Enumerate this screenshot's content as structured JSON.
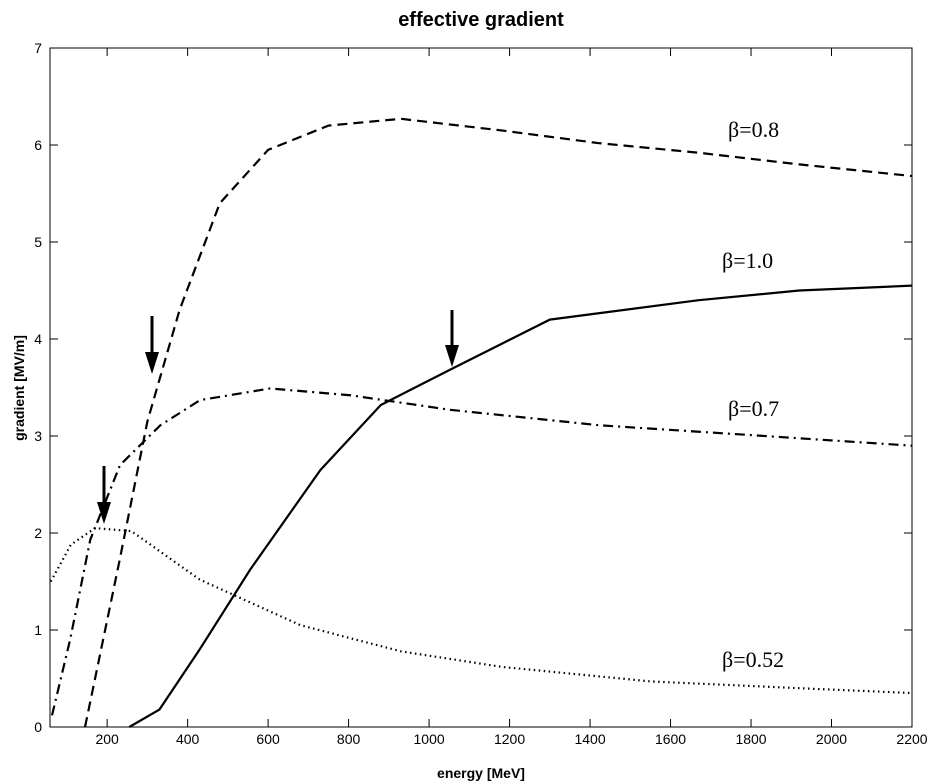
{
  "chart_data": {
    "type": "line",
    "title": "effective gradient",
    "x_label": "energy [MeV]",
    "y_label": "gradient [MV/m]",
    "xlim": [
      58,
      2200
    ],
    "ylim": [
      0,
      7
    ],
    "xticks": [
      200,
      400,
      600,
      800,
      1000,
      1200,
      1400,
      1600,
      1800,
      2000,
      2200
    ],
    "yticks": [
      0,
      1,
      2,
      3,
      4,
      5,
      6,
      7
    ],
    "grid": false,
    "series": [
      {
        "name": "β=0.8",
        "color": "#000000",
        "style": "dashed",
        "x": [
          145,
          180,
          230,
          300,
          380,
          480,
          600,
          750,
          930,
          1180,
          1420,
          1670,
          1920,
          2200
        ],
        "values": [
          0,
          0.7,
          1.7,
          3.15,
          4.3,
          5.4,
          5.95,
          6.2,
          6.27,
          6.15,
          6.02,
          5.92,
          5.8,
          5.68
        ]
      },
      {
        "name": "β=1.0",
        "color": "#000000",
        "style": "solid",
        "x": [
          255,
          330,
          430,
          555,
          730,
          880,
          1060,
          1300,
          1670,
          1920,
          2200
        ],
        "values": [
          0,
          0.18,
          0.8,
          1.62,
          2.65,
          3.32,
          3.7,
          4.2,
          4.4,
          4.5,
          4.55
        ]
      },
      {
        "name": "β=0.7",
        "color": "#000000",
        "style": "dashdot",
        "x": [
          63,
          108,
          158,
          232,
          332,
          431,
          605,
          804,
          1052,
          1425,
          1797,
          2200
        ],
        "values": [
          0.12,
          0.9,
          1.93,
          2.7,
          3.11,
          3.37,
          3.49,
          3.42,
          3.27,
          3.11,
          3.01,
          2.9
        ]
      },
      {
        "name": "β=0.52",
        "color": "#000000",
        "style": "dotted",
        "x": [
          60,
          110,
          170,
          260,
          430,
          680,
          930,
          1180,
          1550,
          1920,
          2200
        ],
        "values": [
          1.5,
          1.88,
          2.05,
          2.02,
          1.52,
          1.05,
          0.78,
          0.62,
          0.47,
          0.4,
          0.35
        ]
      }
    ]
  }
}
